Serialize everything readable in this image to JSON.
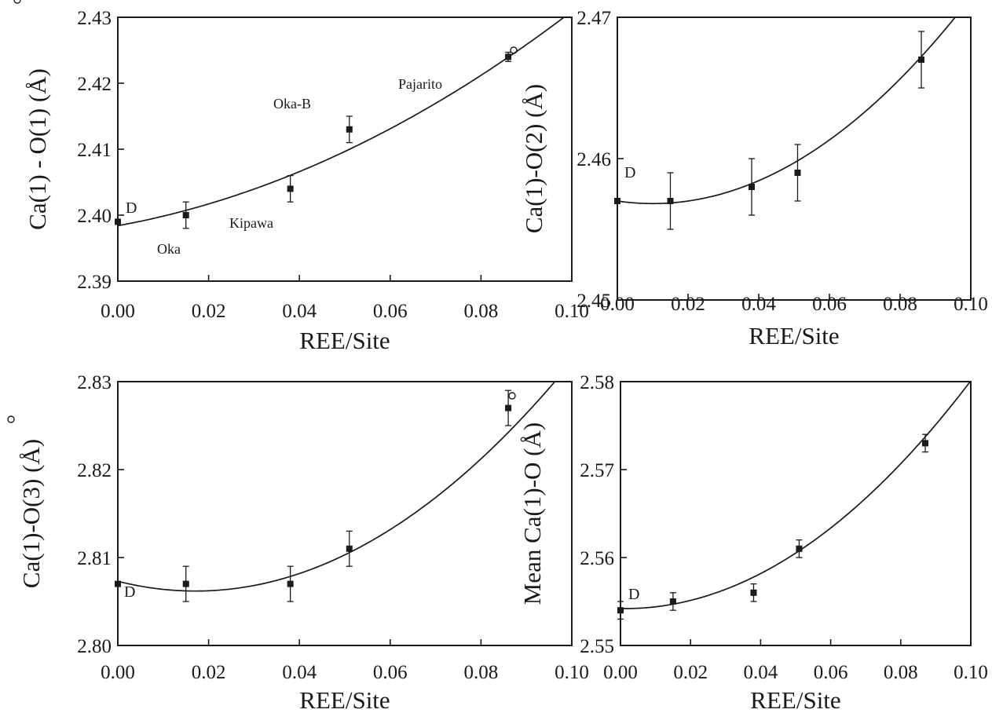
{
  "chart_data": [
    {
      "type": "scatter",
      "xlabel": "REE/Site",
      "ylabel": "Ca(1) - O(1) (Å)",
      "xlim": [
        0,
        0.1
      ],
      "ylim": [
        2.39,
        2.43
      ],
      "xticks": [
        "0.00",
        "0.02",
        "0.04",
        "0.06",
        "0.08",
        "0.10"
      ],
      "yticks": [
        "2.39",
        "2.40",
        "2.41",
        "2.42",
        "2.43"
      ],
      "points": [
        {
          "x": 0.0,
          "y": 2.399,
          "err": 0,
          "label": "D"
        },
        {
          "x": 0.015,
          "y": 2.4,
          "err": 0.002,
          "label": "Oka"
        },
        {
          "x": 0.038,
          "y": 2.404,
          "err": 0.002,
          "label": "Kipawa"
        },
        {
          "x": 0.051,
          "y": 2.413,
          "err": 0.002,
          "label": "Oka-B"
        },
        {
          "x": 0.086,
          "y": 2.424,
          "err": 0.0007,
          "label": "Pajarito"
        }
      ],
      "fit": {
        "type": "quadratic",
        "coeffs": [
          2.3984,
          0.125,
          2.0
        ]
      }
    },
    {
      "type": "scatter",
      "xlabel": "REE/Site",
      "ylabel": "Ca(1)-O(2) (Å)",
      "xlim": [
        0,
        0.1
      ],
      "ylim": [
        2.45,
        2.47
      ],
      "xticks": [
        "0.00",
        "0.02",
        "0.04",
        "0.06",
        "0.08",
        "0.10"
      ],
      "yticks": [
        "2.45",
        "2.46",
        "2.47"
      ],
      "points": [
        {
          "x": 0.0,
          "y": 2.457,
          "err": 0,
          "label": "D"
        },
        {
          "x": 0.015,
          "y": 2.457,
          "err": 0.002
        },
        {
          "x": 0.038,
          "y": 2.458,
          "err": 0.002
        },
        {
          "x": 0.051,
          "y": 2.459,
          "err": 0.002
        },
        {
          "x": 0.086,
          "y": 2.467,
          "err": 0.002
        }
      ],
      "fit": {
        "type": "quadratic",
        "coeffs": [
          2.457,
          -0.036,
          1.8
        ]
      }
    },
    {
      "type": "scatter",
      "xlabel": "REE/Site",
      "ylabel": "Ca(1)-O(3) (Å)",
      "xlim": [
        0,
        0.1
      ],
      "ylim": [
        2.8,
        2.83
      ],
      "xticks": [
        "0.00",
        "0.02",
        "0.04",
        "0.06",
        "0.08",
        "0.10"
      ],
      "yticks": [
        "2.80",
        "2.81",
        "2.82",
        "2.83"
      ],
      "points": [
        {
          "x": 0.0,
          "y": 2.807,
          "err": 0,
          "label": "D"
        },
        {
          "x": 0.015,
          "y": 2.807,
          "err": 0.002
        },
        {
          "x": 0.038,
          "y": 2.807,
          "err": 0.002
        },
        {
          "x": 0.051,
          "y": 2.811,
          "err": 0.002
        },
        {
          "x": 0.086,
          "y": 2.827,
          "err": 0.002
        }
      ],
      "fit": {
        "type": "quadratic",
        "coeffs": [
          2.8073,
          -0.13,
          3.8
        ]
      }
    },
    {
      "type": "scatter",
      "xlabel": "REE/Site",
      "ylabel": "Mean Ca(1)-O (Å)",
      "xlim": [
        0,
        0.1
      ],
      "ylim": [
        2.55,
        2.58
      ],
      "xticks": [
        "0.00",
        "0.02",
        "0.04",
        "0.06",
        "0.08",
        "0.10"
      ],
      "yticks": [
        "2.55",
        "2.56",
        "2.57",
        "2.58"
      ],
      "points": [
        {
          "x": 0.0,
          "y": 2.554,
          "err": 0.001,
          "label": "D"
        },
        {
          "x": 0.015,
          "y": 2.555,
          "err": 0.001
        },
        {
          "x": 0.038,
          "y": 2.556,
          "err": 0.001
        },
        {
          "x": 0.051,
          "y": 2.561,
          "err": 0.001
        },
        {
          "x": 0.087,
          "y": 2.573,
          "err": 0.001
        }
      ],
      "fit": {
        "type": "quadratic",
        "coeffs": [
          2.5542,
          -0.007,
          2.66
        ]
      }
    }
  ]
}
